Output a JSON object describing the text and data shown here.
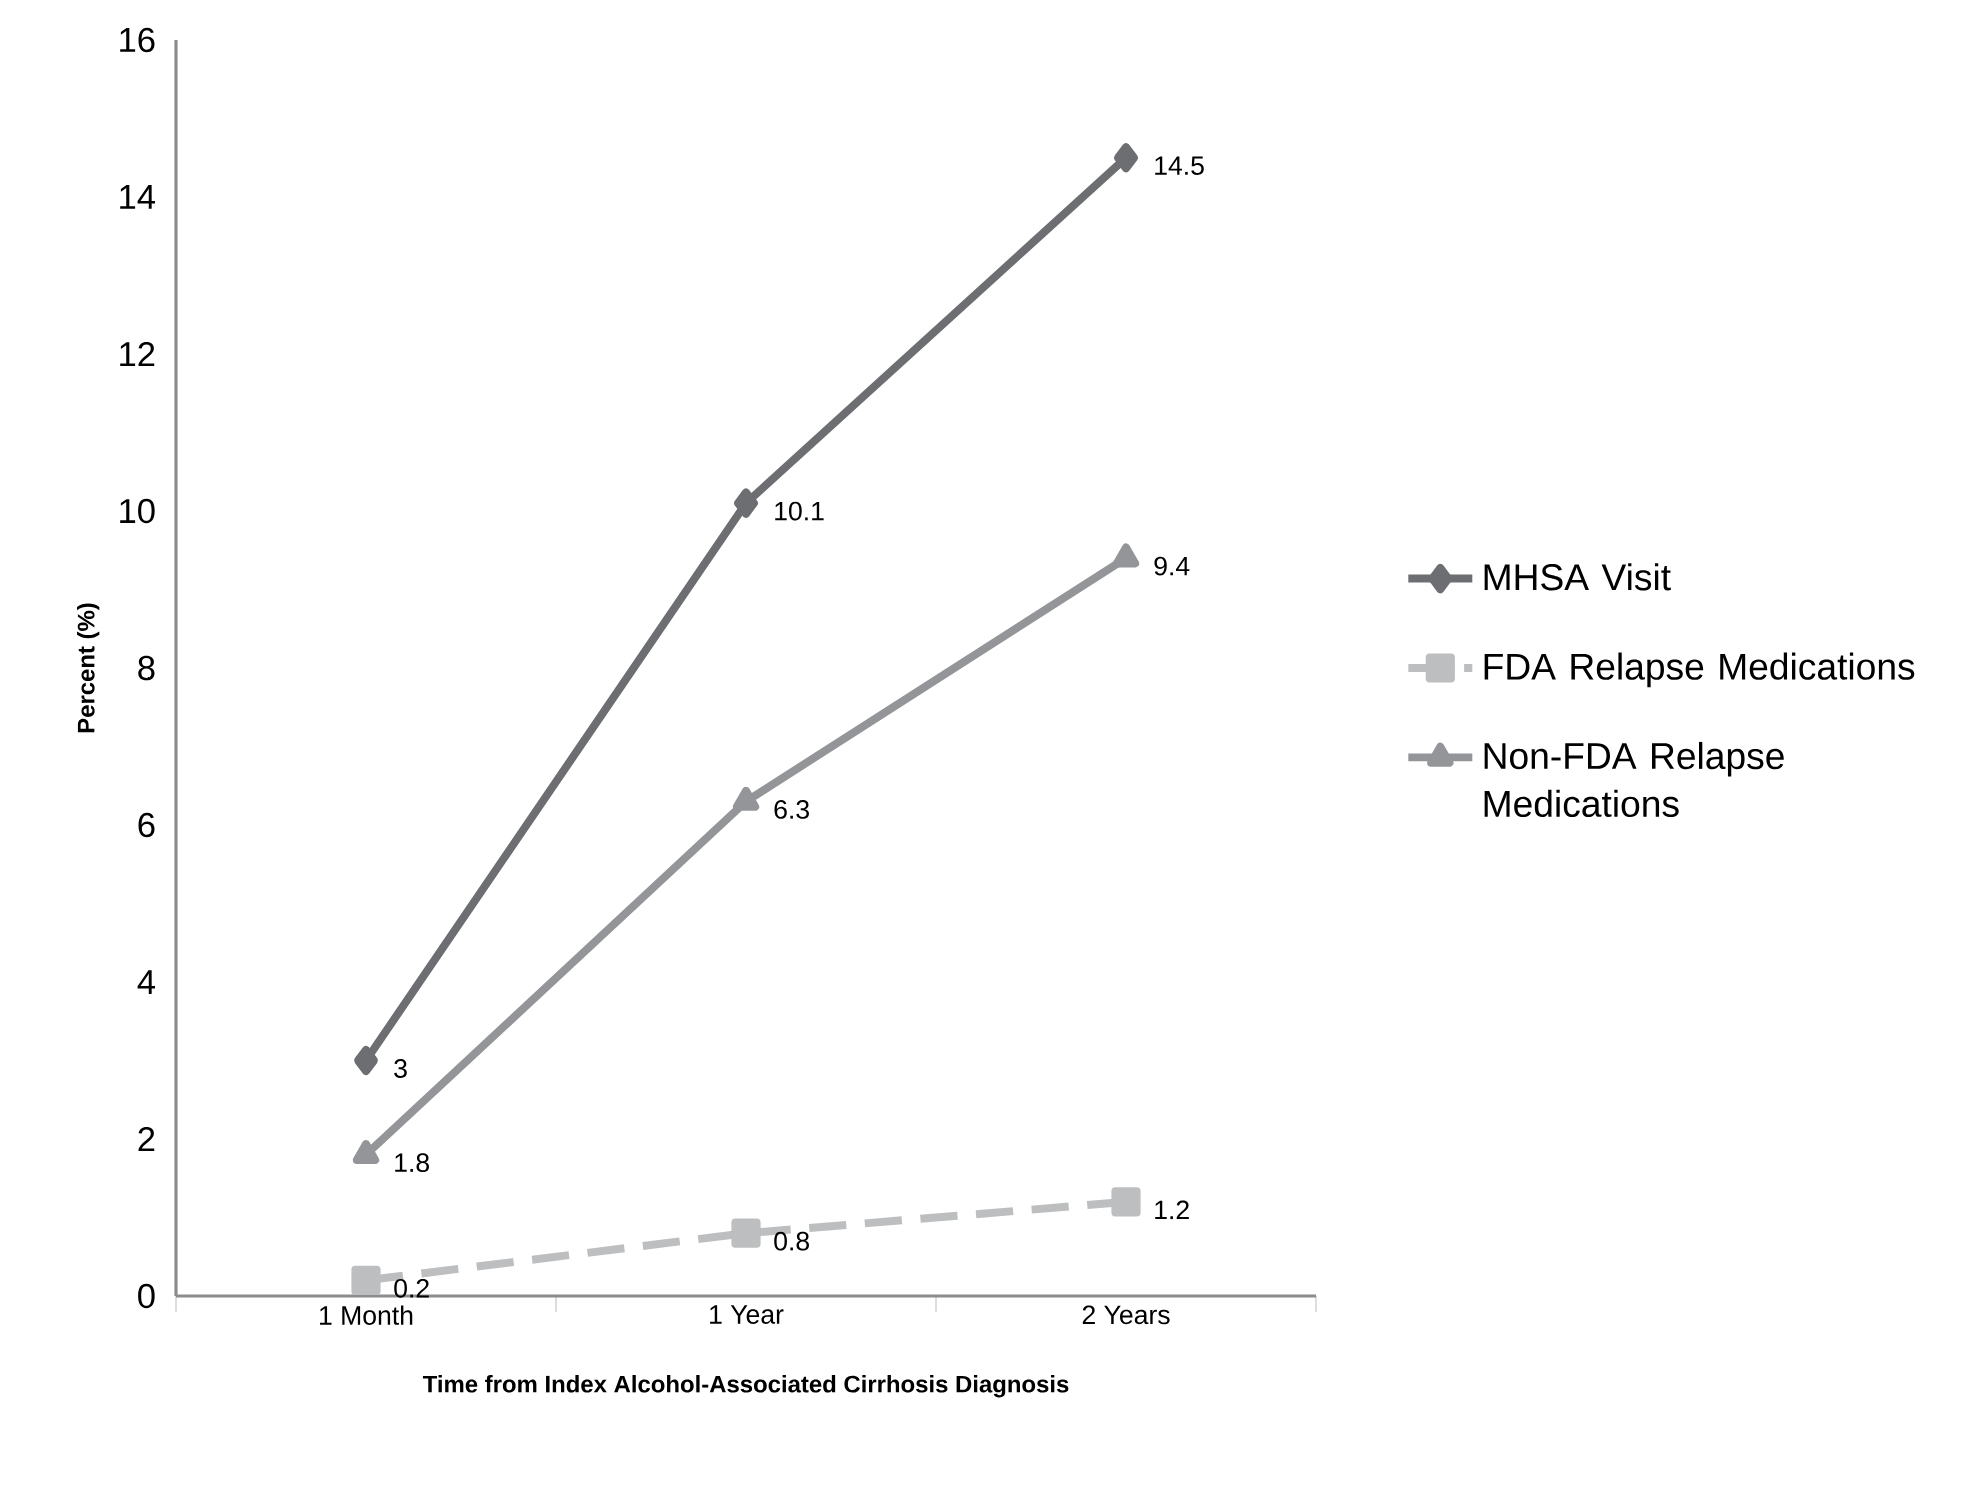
{
  "chart_data": {
    "type": "line",
    "xlabel": "Time from Index Alcohol-Associated  Cirrhosis Diagnosis",
    "ylabel": "Percent (%)",
    "categories": [
      "1 Month",
      "1 Year",
      "2 Years"
    ],
    "series": [
      {
        "name": "MHSA Visit",
        "color": "#6d6e71",
        "marker": "diamond",
        "line_style": "solid",
        "values": [
          3,
          10.1,
          14.5
        ]
      },
      {
        "name": "FDA Relapse Medications",
        "color": "#bcbec0",
        "marker": "square",
        "line_style": "dashed",
        "values": [
          0.2,
          0.8,
          1.2
        ]
      },
      {
        "name": "Non-FDA Relapse Medications",
        "color": "#939598",
        "marker": "triangle",
        "line_style": "solid",
        "values": [
          1.8,
          6.3,
          9.4
        ]
      }
    ],
    "ylim": [
      0,
      16
    ],
    "yticks": [
      0,
      2,
      4,
      6,
      8,
      10,
      12,
      14,
      16
    ],
    "data_labels": true,
    "legend": "right",
    "grid": false
  }
}
